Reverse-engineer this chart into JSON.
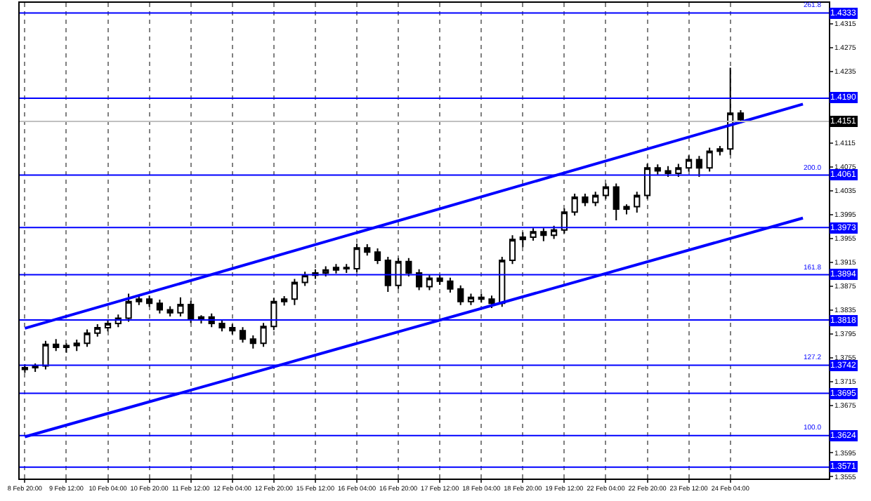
{
  "chart_data": {
    "type": "candlestick",
    "color": "#000000",
    "categories": [
      "8 Feb 20:00",
      null,
      null,
      null,
      "9 Feb 12:00",
      null,
      null,
      null,
      "10 Feb 04:00",
      null,
      null,
      null,
      "10 Feb 20:00",
      null,
      null,
      null,
      "11 Feb 12:00",
      null,
      null,
      null,
      "12 Feb 04:00",
      null,
      null,
      null,
      "12 Feb 20:00",
      null,
      null,
      null,
      "15 Feb 12:00",
      null,
      null,
      null,
      "16 Feb 04:00",
      null,
      null,
      null,
      "16 Feb 20:00",
      null,
      null,
      null,
      "17 Feb 12:00",
      null,
      null,
      null,
      "18 Feb 04:00",
      null,
      null,
      null,
      "18 Feb 20:00",
      null,
      null,
      null,
      "19 Feb 12:00",
      null,
      null,
      null,
      "22 Feb 04:00",
      null,
      null,
      null,
      "22 Feb 20:00",
      null,
      null,
      null,
      "23 Feb 12:00",
      null,
      null,
      null,
      "24 Feb 04:00",
      null,
      null,
      null,
      null,
      null,
      null,
      null,
      null,
      null
    ],
    "ohlc": [
      [
        1.3735,
        1.3744,
        1.3729,
        1.3738
      ],
      [
        1.3738,
        1.3745,
        1.3731,
        1.3741
      ],
      [
        1.3741,
        1.3783,
        1.3735,
        1.3777
      ],
      [
        1.3777,
        1.3786,
        1.3766,
        1.3772
      ],
      [
        1.3772,
        1.3779,
        1.3763,
        1.3775
      ],
      [
        1.3775,
        1.3785,
        1.3766,
        1.3779
      ],
      [
        1.3779,
        1.3802,
        1.3773,
        1.3796
      ],
      [
        1.3796,
        1.3811,
        1.379,
        1.3805
      ],
      [
        1.3805,
        1.3818,
        1.3799,
        1.3812
      ],
      [
        1.3812,
        1.3827,
        1.3806,
        1.3821
      ],
      [
        1.3821,
        1.3862,
        1.3815,
        1.3849
      ],
      [
        1.3849,
        1.386,
        1.3843,
        1.3853
      ],
      [
        1.3853,
        1.3859,
        1.384,
        1.3846
      ],
      [
        1.3846,
        1.3852,
        1.3829,
        1.3835
      ],
      [
        1.3835,
        1.3841,
        1.3824,
        1.383
      ],
      [
        1.383,
        1.3856,
        1.3824,
        1.3844
      ],
      [
        1.3844,
        1.385,
        1.3813,
        1.3819
      ],
      [
        1.3819,
        1.3826,
        1.3812,
        1.3823
      ],
      [
        1.3823,
        1.3829,
        1.3806,
        1.3812
      ],
      [
        1.3812,
        1.3818,
        1.3799,
        1.3805
      ],
      [
        1.3805,
        1.3811,
        1.3794,
        1.38
      ],
      [
        1.38,
        1.3806,
        1.378,
        1.3786
      ],
      [
        1.3786,
        1.3792,
        1.377,
        1.3779
      ],
      [
        1.3779,
        1.3813,
        1.3773,
        1.3807
      ],
      [
        1.3807,
        1.3855,
        1.3801,
        1.3849
      ],
      [
        1.3849,
        1.3858,
        1.3842,
        1.3853
      ],
      [
        1.3853,
        1.3887,
        1.3843,
        1.3881
      ],
      [
        1.3881,
        1.3899,
        1.3875,
        1.3893
      ],
      [
        1.3893,
        1.3903,
        1.3887,
        1.3897
      ],
      [
        1.3897,
        1.3908,
        1.3891,
        1.3902
      ],
      [
        1.3902,
        1.3912,
        1.3896,
        1.3906
      ],
      [
        1.3906,
        1.3912,
        1.3897,
        1.3904
      ],
      [
        1.3904,
        1.3946,
        1.3898,
        1.3939
      ],
      [
        1.3939,
        1.3945,
        1.3926,
        1.3932
      ],
      [
        1.3932,
        1.3938,
        1.3912,
        1.3918
      ],
      [
        1.3918,
        1.3924,
        1.3865,
        1.3876
      ],
      [
        1.3876,
        1.3922,
        1.387,
        1.3916
      ],
      [
        1.3916,
        1.3922,
        1.3891,
        1.3897
      ],
      [
        1.3897,
        1.3903,
        1.3868,
        1.3874
      ],
      [
        1.3874,
        1.3894,
        1.3868,
        1.3888
      ],
      [
        1.3888,
        1.3894,
        1.3877,
        1.3883
      ],
      [
        1.3883,
        1.3889,
        1.3864,
        1.387
      ],
      [
        1.387,
        1.3876,
        1.3843,
        1.3849
      ],
      [
        1.3849,
        1.3862,
        1.3843,
        1.3856
      ],
      [
        1.3856,
        1.3862,
        1.3847,
        1.3853
      ],
      [
        1.3853,
        1.3859,
        1.3838,
        1.3846
      ],
      [
        1.3846,
        1.3924,
        1.384,
        1.3918
      ],
      [
        1.3918,
        1.396,
        1.3912,
        1.3953
      ],
      [
        1.3953,
        1.3965,
        1.394,
        1.3957
      ],
      [
        1.3957,
        1.3972,
        1.3951,
        1.3966
      ],
      [
        1.3966,
        1.3972,
        1.395,
        1.396
      ],
      [
        1.396,
        1.3976,
        1.3954,
        1.3969
      ],
      [
        1.3969,
        1.4005,
        1.3963,
        1.3999
      ],
      [
        1.3999,
        1.403,
        1.3993,
        1.4024
      ],
      [
        1.4024,
        1.403,
        1.4009,
        1.4015
      ],
      [
        1.4015,
        1.4033,
        1.4009,
        1.4027
      ],
      [
        1.4027,
        1.4047,
        1.4021,
        1.4041
      ],
      [
        1.4041,
        1.4047,
        1.3985,
        1.4004
      ],
      [
        1.4004,
        1.4012,
        1.3995,
        1.4008
      ],
      [
        1.4008,
        1.4033,
        1.3998,
        1.4027
      ],
      [
        1.4027,
        1.408,
        1.4021,
        1.4073
      ],
      [
        1.4073,
        1.4079,
        1.4062,
        1.4068
      ],
      [
        1.4068,
        1.4076,
        1.4058,
        1.4064
      ],
      [
        1.4064,
        1.408,
        1.4058,
        1.4073
      ],
      [
        1.4073,
        1.4094,
        1.4067,
        1.4087
      ],
      [
        1.4087,
        1.4093,
        1.4058,
        1.4073
      ],
      [
        1.4073,
        1.4107,
        1.4067,
        1.4101
      ],
      [
        1.4101,
        1.411,
        1.4094,
        1.4105
      ],
      [
        1.4105,
        1.4241,
        1.4095,
        1.4165
      ],
      [
        1.4165,
        1.417,
        1.4148,
        1.4154
      ],
      null,
      null,
      null,
      null,
      null,
      null,
      null,
      null
    ],
    "series": [
      {
        "type": "line",
        "color": "#0000ff",
        "values": [
          1.3804,
          null,
          null,
          null,
          null,
          null,
          null,
          null,
          null,
          null,
          null,
          null,
          null,
          null,
          null,
          null,
          null,
          null,
          null,
          null,
          null,
          null,
          null,
          null,
          null,
          null,
          null,
          null,
          null,
          null,
          null,
          null,
          null,
          null,
          null,
          null,
          null,
          null,
          null,
          null,
          null,
          null,
          null,
          null,
          null,
          null,
          null,
          null,
          null,
          null,
          null,
          null,
          null,
          null,
          null,
          null,
          null,
          null,
          null,
          null,
          null,
          null,
          null,
          null,
          null,
          null,
          null,
          null,
          null,
          null,
          null,
          null,
          null,
          null,
          null,
          1.418,
          null,
          null
        ]
      },
      {
        "type": "line",
        "color": "#0000ff",
        "values": [
          1.3622,
          null,
          null,
          null,
          null,
          null,
          null,
          null,
          null,
          null,
          null,
          null,
          null,
          null,
          null,
          null,
          null,
          null,
          null,
          null,
          null,
          null,
          null,
          null,
          null,
          null,
          null,
          null,
          null,
          null,
          null,
          null,
          null,
          null,
          null,
          null,
          null,
          null,
          null,
          null,
          null,
          null,
          null,
          null,
          null,
          null,
          null,
          null,
          null,
          null,
          null,
          null,
          null,
          null,
          null,
          null,
          null,
          null,
          null,
          null,
          null,
          null,
          null,
          null,
          null,
          null,
          null,
          null,
          null,
          null,
          null,
          null,
          null,
          null,
          null,
          1.3989,
          null,
          null
        ]
      }
    ],
    "ylim": [
      1.3552,
      1.435
    ],
    "yticks": [
      1.3555,
      1.3595,
      1.3675,
      1.3715,
      1.3755,
      1.3795,
      1.3835,
      1.3875,
      1.3915,
      1.3955,
      1.3995,
      1.4035,
      1.4075,
      1.4115,
      1.4235,
      1.4275,
      1.4315
    ],
    "ref_lines": [
      {
        "axis": "y",
        "value": 1.4333,
        "label": "1.4333",
        "color": "#0000ff"
      },
      {
        "axis": "y",
        "value": 1.419,
        "label": "1.4190",
        "color": "#0000ff"
      },
      {
        "axis": "y",
        "value": 1.4151,
        "label": "1.4151",
        "color": "#c0c0c0"
      },
      {
        "axis": "y",
        "value": 1.4061,
        "label": "1.4061",
        "color": "#0000ff"
      },
      {
        "axis": "y",
        "value": 1.3973,
        "label": "1.3973",
        "color": "#0000ff"
      },
      {
        "axis": "y",
        "value": 1.3894,
        "label": "1.3894",
        "color": "#0000ff"
      },
      {
        "axis": "y",
        "value": 1.3818,
        "label": "1.3818",
        "color": "#0000ff"
      },
      {
        "axis": "y",
        "value": 1.3742,
        "label": "1.3742",
        "color": "#0000ff"
      },
      {
        "axis": "y",
        "value": 1.3695,
        "label": "1.3695",
        "color": "#0000ff"
      },
      {
        "axis": "y",
        "value": 1.3624,
        "label": "1.3624",
        "color": "#0000ff"
      },
      {
        "axis": "y",
        "value": 1.3571,
        "label": "1.3571",
        "color": "#0000ff"
      }
    ],
    "annotations": [
      {
        "text": "261.8",
        "y": 1.4333
      },
      {
        "text": "200.0",
        "y": 1.4061
      },
      {
        "text": "161.8",
        "y": 1.3894
      },
      {
        "text": "127.2",
        "y": 1.3742
      },
      {
        "text": "100.0",
        "y": 1.3624
      }
    ],
    "grid": "x"
  }
}
